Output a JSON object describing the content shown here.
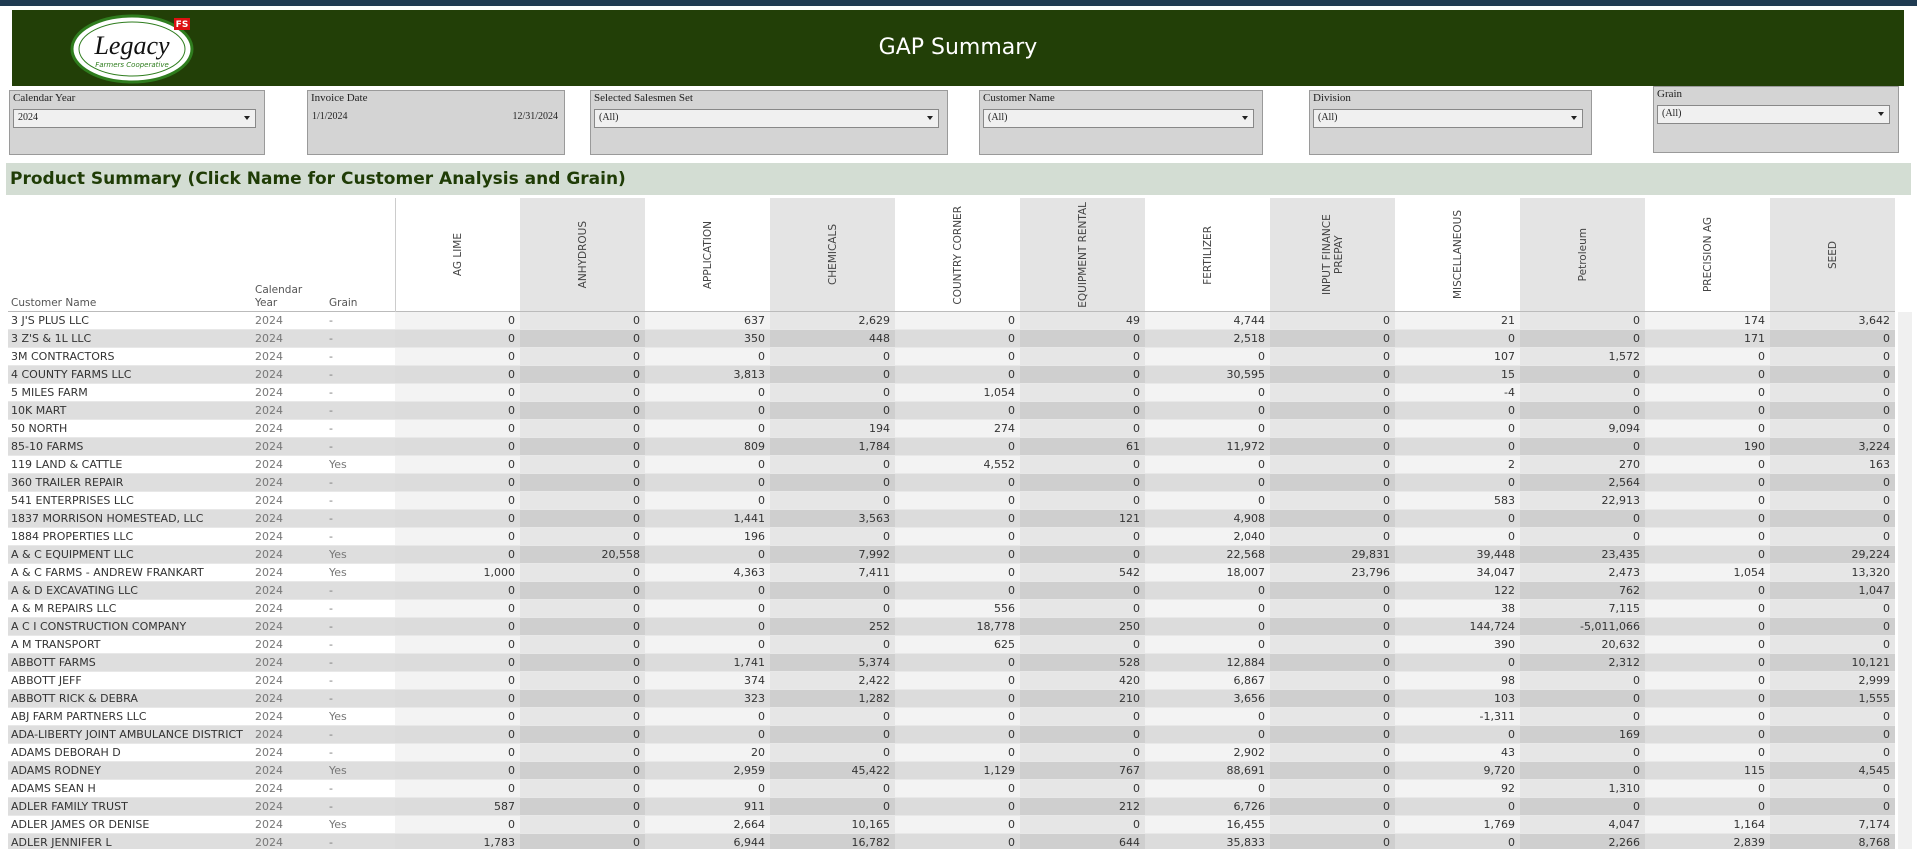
{
  "header": {
    "title": "GAP Summary",
    "logo": {
      "name": "Legacy",
      "badge": "FS",
      "tagline": "Farmers Cooperative"
    }
  },
  "filters": [
    {
      "label": "Calendar Year",
      "value": "2024"
    },
    {
      "label": "Invoice Date",
      "from": "1/1/2024",
      "to": "12/31/2024"
    },
    {
      "label": "Selected Salesmen Set",
      "value": "(All)"
    },
    {
      "label": "Customer Name",
      "value": "(All)"
    },
    {
      "label": "Division",
      "value": "(All)"
    },
    {
      "label": "Grain",
      "value": "(All)"
    }
  ],
  "section_title": "Product Summary (Click Name for Customer Analysis and Grain)",
  "table": {
    "columns": [
      "Customer Name",
      "Calendar Year",
      "Grain",
      "AG LIME",
      "ANHYDROUS",
      "APPLICATION",
      "CHEMICALS",
      "COUNTRY CORNER",
      "EQUIPMENT RENTAL",
      "FERTILIZER",
      "INPUT FINANCE PREPAY",
      "MISCELLANEOUS",
      "Petroleum",
      "PRECISION AG",
      "SEED"
    ],
    "rows": [
      [
        "3 J'S PLUS LLC",
        "2024",
        "-",
        "0",
        "0",
        "637",
        "2,629",
        "0",
        "49",
        "4,744",
        "0",
        "21",
        "0",
        "174",
        "3,642"
      ],
      [
        "3 Z'S & 1L LLC",
        "2024",
        "-",
        "0",
        "0",
        "350",
        "448",
        "0",
        "0",
        "2,518",
        "0",
        "0",
        "0",
        "171",
        "0"
      ],
      [
        "3M CONTRACTORS",
        "2024",
        "-",
        "0",
        "0",
        "0",
        "0",
        "0",
        "0",
        "0",
        "0",
        "107",
        "1,572",
        "0",
        "0"
      ],
      [
        "4 COUNTY FARMS LLC",
        "2024",
        "-",
        "0",
        "0",
        "3,813",
        "0",
        "0",
        "0",
        "30,595",
        "0",
        "15",
        "0",
        "0",
        "0"
      ],
      [
        "5 MILES FARM",
        "2024",
        "-",
        "0",
        "0",
        "0",
        "0",
        "1,054",
        "0",
        "0",
        "0",
        "-4",
        "0",
        "0",
        "0"
      ],
      [
        "10K MART",
        "2024",
        "-",
        "0",
        "0",
        "0",
        "0",
        "0",
        "0",
        "0",
        "0",
        "0",
        "0",
        "0",
        "0"
      ],
      [
        "50 NORTH",
        "2024",
        "-",
        "0",
        "0",
        "0",
        "194",
        "274",
        "0",
        "0",
        "0",
        "0",
        "9,094",
        "0",
        "0"
      ],
      [
        "85-10 FARMS",
        "2024",
        "-",
        "0",
        "0",
        "809",
        "1,784",
        "0",
        "61",
        "11,972",
        "0",
        "0",
        "0",
        "190",
        "3,224"
      ],
      [
        "119 LAND & CATTLE",
        "2024",
        "Yes",
        "0",
        "0",
        "0",
        "0",
        "4,552",
        "0",
        "0",
        "0",
        "2",
        "270",
        "0",
        "163"
      ],
      [
        "360 TRAILER REPAIR",
        "2024",
        "-",
        "0",
        "0",
        "0",
        "0",
        "0",
        "0",
        "0",
        "0",
        "0",
        "2,564",
        "0",
        "0"
      ],
      [
        "541 ENTERPRISES LLC",
        "2024",
        "-",
        "0",
        "0",
        "0",
        "0",
        "0",
        "0",
        "0",
        "0",
        "583",
        "22,913",
        "0",
        "0"
      ],
      [
        "1837 MORRISON HOMESTEAD, LLC",
        "2024",
        "-",
        "0",
        "0",
        "1,441",
        "3,563",
        "0",
        "121",
        "4,908",
        "0",
        "0",
        "0",
        "0",
        "0"
      ],
      [
        "1884 PROPERTIES LLC",
        "2024",
        "-",
        "0",
        "0",
        "196",
        "0",
        "0",
        "0",
        "2,040",
        "0",
        "0",
        "0",
        "0",
        "0"
      ],
      [
        "A & C EQUIPMENT LLC",
        "2024",
        "Yes",
        "0",
        "20,558",
        "0",
        "7,992",
        "0",
        "0",
        "22,568",
        "29,831",
        "39,448",
        "23,435",
        "0",
        "29,224"
      ],
      [
        "A & C FARMS - ANDREW FRANKART",
        "2024",
        "Yes",
        "1,000",
        "0",
        "4,363",
        "7,411",
        "0",
        "542",
        "18,007",
        "23,796",
        "34,047",
        "2,473",
        "1,054",
        "13,320"
      ],
      [
        "A & D EXCAVATING LLC",
        "2024",
        "-",
        "0",
        "0",
        "0",
        "0",
        "0",
        "0",
        "0",
        "0",
        "122",
        "762",
        "0",
        "1,047"
      ],
      [
        "A & M REPAIRS LLC",
        "2024",
        "-",
        "0",
        "0",
        "0",
        "0",
        "556",
        "0",
        "0",
        "0",
        "38",
        "7,115",
        "0",
        "0"
      ],
      [
        "A C I CONSTRUCTION COMPANY",
        "2024",
        "-",
        "0",
        "0",
        "0",
        "252",
        "18,778",
        "250",
        "0",
        "0",
        "144,724",
        "-5,011,066",
        "0",
        "0"
      ],
      [
        "A M TRANSPORT",
        "2024",
        "-",
        "0",
        "0",
        "0",
        "0",
        "625",
        "0",
        "0",
        "0",
        "390",
        "20,632",
        "0",
        "0"
      ],
      [
        "ABBOTT FARMS",
        "2024",
        "-",
        "0",
        "0",
        "1,741",
        "5,374",
        "0",
        "528",
        "12,884",
        "0",
        "0",
        "2,312",
        "0",
        "10,121"
      ],
      [
        "ABBOTT JEFF",
        "2024",
        "-",
        "0",
        "0",
        "374",
        "2,422",
        "0",
        "420",
        "6,867",
        "0",
        "98",
        "0",
        "0",
        "2,999"
      ],
      [
        "ABBOTT RICK & DEBRA",
        "2024",
        "-",
        "0",
        "0",
        "323",
        "1,282",
        "0",
        "210",
        "3,656",
        "0",
        "103",
        "0",
        "0",
        "1,555"
      ],
      [
        "ABJ FARM PARTNERS LLC",
        "2024",
        "Yes",
        "0",
        "0",
        "0",
        "0",
        "0",
        "0",
        "0",
        "0",
        "-1,311",
        "0",
        "0",
        "0"
      ],
      [
        "ADA-LIBERTY JOINT AMBULANCE DISTRICT",
        "2024",
        "-",
        "0",
        "0",
        "0",
        "0",
        "0",
        "0",
        "0",
        "0",
        "0",
        "169",
        "0",
        "0"
      ],
      [
        "ADAMS DEBORAH D",
        "2024",
        "-",
        "0",
        "0",
        "20",
        "0",
        "0",
        "0",
        "2,902",
        "0",
        "43",
        "0",
        "0",
        "0"
      ],
      [
        "ADAMS RODNEY",
        "2024",
        "Yes",
        "0",
        "0",
        "2,959",
        "45,422",
        "1,129",
        "767",
        "88,691",
        "0",
        "9,720",
        "0",
        "115",
        "4,545"
      ],
      [
        "ADAMS SEAN H",
        "2024",
        "-",
        "0",
        "0",
        "0",
        "0",
        "0",
        "0",
        "0",
        "0",
        "92",
        "1,310",
        "0",
        "0"
      ],
      [
        "ADLER FAMILY TRUST",
        "2024",
        "-",
        "587",
        "0",
        "911",
        "0",
        "0",
        "212",
        "6,726",
        "0",
        "0",
        "0",
        "0",
        "0"
      ],
      [
        "ADLER JAMES OR DENISE",
        "2024",
        "Yes",
        "0",
        "0",
        "2,664",
        "10,165",
        "0",
        "0",
        "16,455",
        "0",
        "1,769",
        "4,047",
        "1,164",
        "7,174"
      ],
      [
        "ADLER JENNIFER L",
        "2024",
        "-",
        "1,783",
        "0",
        "6,944",
        "16,782",
        "0",
        "644",
        "35,833",
        "0",
        "0",
        "2,266",
        "2,839",
        "8,768"
      ]
    ]
  }
}
